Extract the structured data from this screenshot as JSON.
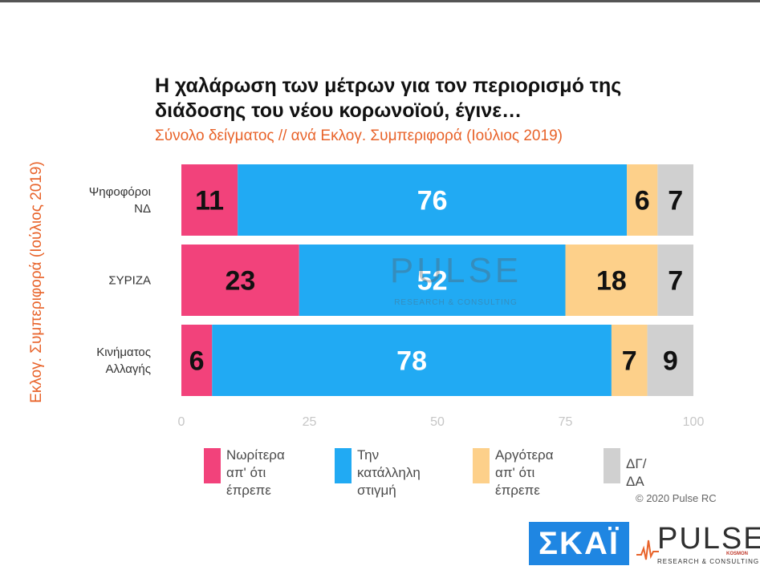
{
  "title": "Η χαλάρωση των μέτρων για τον περιορισμό της διάδοσης του νέου κορωνοϊού, έγινε…",
  "subtitle": "Σύνολο δείγματος // ανά Εκλογ. Συμπεριφορά (Ιούλιος 2019)",
  "copyright": "© 2020 Pulse RC",
  "logos": {
    "skai": "ΣΚΑΪ",
    "pulse": "PULSE",
    "pulse_sub": "RESEARCH & CONSULTING",
    "pulse_tag": "KOSMON"
  },
  "watermark": {
    "name": "PULSE",
    "sub": "RESEARCH & CONSULTING"
  },
  "chart_data": {
    "type": "bar",
    "orientation": "horizontal",
    "stacked": true,
    "ylabel": "Εκλογ. Συμπεριφορά (Ιούλιος 2019)",
    "xlabel": "",
    "xlim": [
      0,
      100
    ],
    "xticks": [
      0,
      25,
      50,
      75,
      100
    ],
    "grid": false,
    "legend_position": "bottom",
    "categories": [
      "Ψηφοφόροι\nΝΔ",
      "ΣΥΡΙΖΑ",
      "Κινήματος\nΑλλαγής"
    ],
    "series": [
      {
        "name": "Νωρίτερα\nαπ' ότι έπρεπε",
        "color": "#f2427b",
        "label_color": "#111111",
        "values": [
          11,
          23,
          6
        ]
      },
      {
        "name": "Την κατάλληλη\nστιγμή",
        "color": "#21aaf3",
        "label_color": "#ffffff",
        "values": [
          76,
          52,
          78
        ]
      },
      {
        "name": "Αργότερα\nαπ' ότι έπρεπε",
        "color": "#fdd08a",
        "label_color": "#111111",
        "values": [
          6,
          18,
          7
        ]
      },
      {
        "name": "ΔΓ/ΔΑ",
        "color": "#d0d0d0",
        "label_color": "#111111",
        "values": [
          7,
          7,
          9
        ]
      }
    ]
  }
}
